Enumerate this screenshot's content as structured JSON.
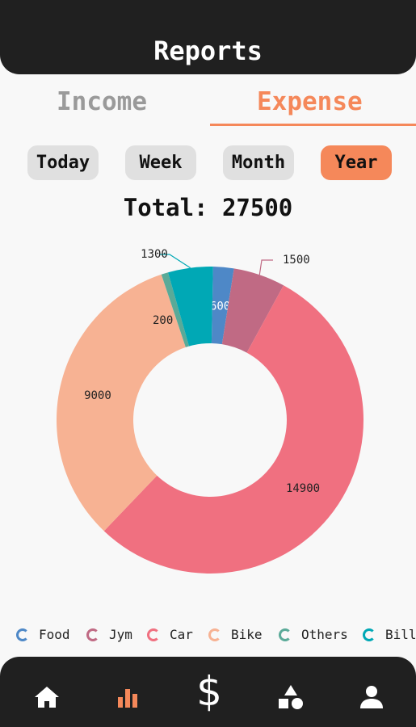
{
  "header": {
    "title": "Reports"
  },
  "tabs": [
    {
      "label": "Income",
      "active": false
    },
    {
      "label": "Expense",
      "active": true
    }
  ],
  "periods": [
    {
      "label": "Today",
      "active": false
    },
    {
      "label": "Week",
      "active": false
    },
    {
      "label": "Month",
      "active": false
    },
    {
      "label": "Year",
      "active": true
    }
  ],
  "total_text": "Total: 27500",
  "colors": {
    "accent": "#f5885a",
    "Food": "#4e88c7",
    "Jym": "#c06a84",
    "Car": "#f07080",
    "Bike": "#f7b293",
    "Others": "#5aaa98",
    "Bill": "#00a8b5"
  },
  "chart_data": {
    "type": "pie",
    "donut": true,
    "labels": [
      "Food",
      "Jym",
      "Car",
      "Bike",
      "Others",
      "Bill"
    ],
    "values": [
      600,
      1500,
      14900,
      9000,
      200,
      1300
    ],
    "data_labels": [
      "600",
      "1500",
      "14900",
      "9000",
      "200",
      "1300"
    ],
    "legend_position": "bottom"
  },
  "legend": [
    {
      "label": "Food"
    },
    {
      "label": "Jym"
    },
    {
      "label": "Car"
    },
    {
      "label": "Bike"
    },
    {
      "label": "Others"
    },
    {
      "label": "Bill"
    }
  ],
  "nav": [
    {
      "icon": "home-icon",
      "active": false
    },
    {
      "icon": "bar-chart-icon",
      "active": true
    },
    {
      "icon": "dollar-icon",
      "active": false
    },
    {
      "icon": "shapes-icon",
      "active": false
    },
    {
      "icon": "user-icon",
      "active": false
    }
  ]
}
